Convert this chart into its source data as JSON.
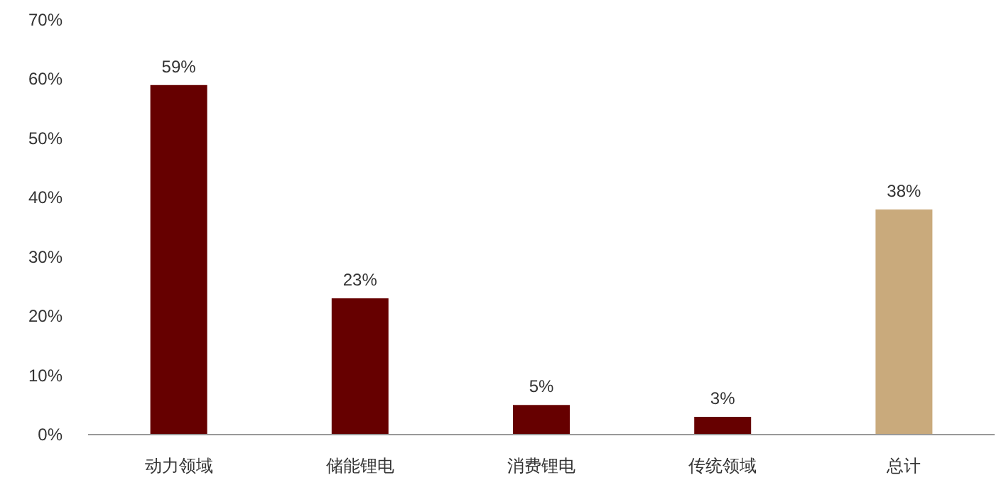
{
  "chart_data": {
    "type": "bar",
    "categories": [
      "动力领域",
      "储能锂电",
      "消费锂电",
      "传统领域",
      "总计"
    ],
    "values": [
      59,
      23,
      5,
      3,
      38
    ],
    "colors": [
      "#660000",
      "#660000",
      "#660000",
      "#660000",
      "#c9aa7c"
    ],
    "value_labels": [
      "59%",
      "23%",
      "5%",
      "3%",
      "38%"
    ],
    "ylim": [
      0,
      70
    ],
    "yticks": [
      {
        "value": 0,
        "label": "0%"
      },
      {
        "value": 10,
        "label": "10%"
      },
      {
        "value": 20,
        "label": "20%"
      },
      {
        "value": 30,
        "label": "30%"
      },
      {
        "value": 40,
        "label": "40%"
      },
      {
        "value": 50,
        "label": "50%"
      },
      {
        "value": 60,
        "label": "60%"
      },
      {
        "value": 70,
        "label": "70%"
      }
    ],
    "grid": false
  }
}
